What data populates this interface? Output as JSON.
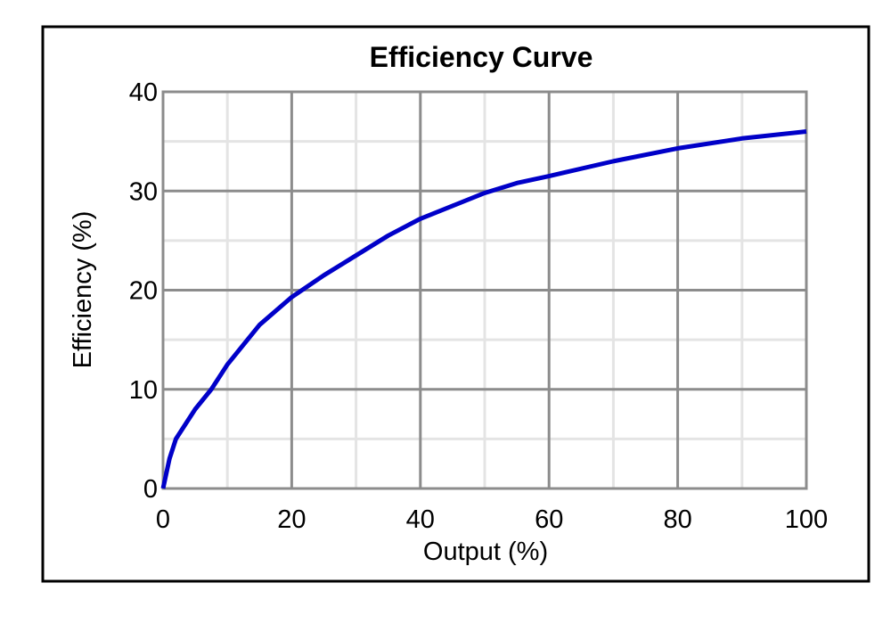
{
  "chart_data": {
    "type": "line",
    "title": "Efficiency Curve",
    "x_label": "Output (%)",
    "y_label": "Efficiency (%)",
    "series": [
      {
        "name": "Efficiency",
        "color": "#0000c8",
        "x": [
          0,
          1,
          2,
          5,
          7.5,
          10,
          15,
          20,
          25,
          30,
          35,
          40,
          45,
          50,
          55,
          60,
          70,
          80,
          90,
          100
        ],
        "values": [
          0,
          3,
          5,
          8,
          10,
          12.5,
          16.5,
          19.3,
          21.5,
          23.5,
          25.5,
          27.2,
          28.5,
          29.8,
          30.8,
          31.5,
          33,
          34.3,
          35.3,
          36
        ]
      }
    ],
    "xlim": [
      0,
      100
    ],
    "xticks": [
      0,
      20,
      40,
      60,
      80,
      100
    ],
    "x_minor_grid": [
      10,
      30,
      50,
      70,
      90
    ],
    "ylim": [
      0,
      40
    ],
    "yticks": [
      0,
      10,
      20,
      30,
      40
    ],
    "y_minor_grid": [
      5,
      15,
      25,
      35
    ],
    "grid": true
  }
}
